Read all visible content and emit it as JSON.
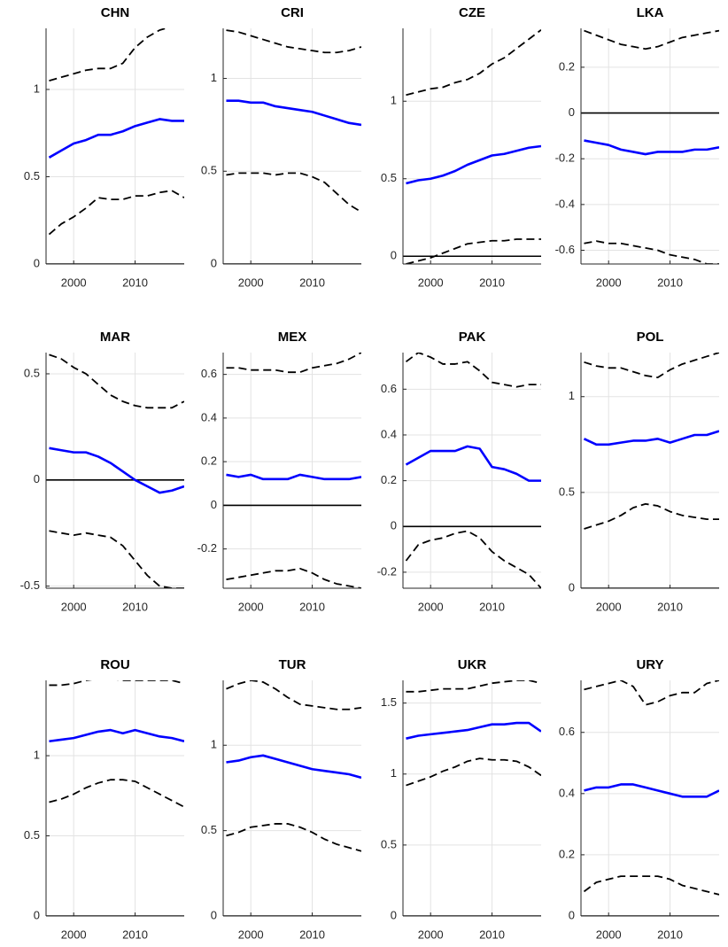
{
  "chart_data": [
    {
      "type": "line",
      "title": "CHN",
      "x": [
        1996,
        1998,
        2000,
        2002,
        2004,
        2006,
        2008,
        2010,
        2012,
        2014,
        2016,
        2018
      ],
      "xlim": [
        1995.5,
        2018
      ],
      "xticks": [
        2000,
        2010
      ],
      "ylim": [
        0,
        1.35
      ],
      "yticks": [
        0,
        0.5,
        1
      ],
      "grid": true,
      "hline": 0,
      "series": [
        {
          "color": "#0000ff",
          "style": "solid",
          "values": [
            0.61,
            0.65,
            0.69,
            0.71,
            0.74,
            0.74,
            0.76,
            0.79,
            0.81,
            0.83,
            0.82,
            0.82
          ]
        },
        {
          "color": "#000000",
          "style": "dashed",
          "values": [
            1.05,
            1.07,
            1.09,
            1.11,
            1.12,
            1.12,
            1.15,
            1.24,
            1.3,
            1.34,
            1.36,
            1.36
          ]
        },
        {
          "color": "#000000",
          "style": "dashed",
          "values": [
            0.17,
            0.23,
            0.27,
            0.32,
            0.38,
            0.37,
            0.37,
            0.39,
            0.39,
            0.41,
            0.42,
            0.38
          ]
        }
      ]
    },
    {
      "type": "line",
      "title": "CRI",
      "x": [
        1996,
        1998,
        2000,
        2002,
        2004,
        2006,
        2008,
        2010,
        2012,
        2014,
        2016,
        2018
      ],
      "xlim": [
        1995.5,
        2018
      ],
      "xticks": [
        2000,
        2010
      ],
      "ylim": [
        0,
        1.27
      ],
      "yticks": [
        0,
        0.5,
        1
      ],
      "grid": true,
      "hline": 0,
      "series": [
        {
          "color": "#0000ff",
          "style": "solid",
          "values": [
            0.88,
            0.88,
            0.87,
            0.87,
            0.85,
            0.84,
            0.83,
            0.82,
            0.8,
            0.78,
            0.76,
            0.75
          ]
        },
        {
          "color": "#000000",
          "style": "dashed",
          "values": [
            1.26,
            1.25,
            1.23,
            1.21,
            1.19,
            1.17,
            1.16,
            1.15,
            1.14,
            1.14,
            1.15,
            1.17
          ]
        },
        {
          "color": "#000000",
          "style": "dashed",
          "values": [
            0.48,
            0.49,
            0.49,
            0.49,
            0.48,
            0.49,
            0.49,
            0.47,
            0.44,
            0.38,
            0.32,
            0.28
          ]
        }
      ]
    },
    {
      "type": "line",
      "title": "CZE",
      "x": [
        1996,
        1998,
        2000,
        2002,
        2004,
        2006,
        2008,
        2010,
        2012,
        2014,
        2016,
        2018
      ],
      "xlim": [
        1995.5,
        2018
      ],
      "xticks": [
        2000,
        2010
      ],
      "ylim": [
        -0.05,
        1.47
      ],
      "yticks": [
        0,
        0.5,
        1
      ],
      "grid": true,
      "hline": 0,
      "series": [
        {
          "color": "#0000ff",
          "style": "solid",
          "values": [
            0.47,
            0.49,
            0.5,
            0.52,
            0.55,
            0.59,
            0.62,
            0.65,
            0.66,
            0.68,
            0.7,
            0.71
          ]
        },
        {
          "color": "#000000",
          "style": "dashed",
          "values": [
            1.04,
            1.06,
            1.08,
            1.09,
            1.12,
            1.14,
            1.18,
            1.24,
            1.28,
            1.34,
            1.4,
            1.46
          ]
        },
        {
          "color": "#000000",
          "style": "dashed",
          "values": [
            -0.05,
            -0.03,
            -0.01,
            0.02,
            0.05,
            0.08,
            0.09,
            0.1,
            0.1,
            0.11,
            0.11,
            0.11
          ]
        }
      ]
    },
    {
      "type": "line",
      "title": "LKA",
      "x": [
        1996,
        1998,
        2000,
        2002,
        2004,
        2006,
        2008,
        2010,
        2012,
        2014,
        2016,
        2018
      ],
      "xlim": [
        1995.5,
        2018
      ],
      "xticks": [
        2000,
        2010
      ],
      "ylim": [
        -0.66,
        0.37
      ],
      "yticks": [
        -0.6,
        -0.4,
        -0.2,
        0,
        0.2
      ],
      "grid": true,
      "hline": 0,
      "series": [
        {
          "color": "#0000ff",
          "style": "solid",
          "values": [
            -0.12,
            -0.13,
            -0.14,
            -0.16,
            -0.17,
            -0.18,
            -0.17,
            -0.17,
            -0.17,
            -0.16,
            -0.16,
            -0.15
          ]
        },
        {
          "color": "#000000",
          "style": "dashed",
          "values": [
            0.36,
            0.34,
            0.32,
            0.3,
            0.29,
            0.28,
            0.29,
            0.31,
            0.33,
            0.34,
            0.35,
            0.36
          ]
        },
        {
          "color": "#000000",
          "style": "dashed",
          "values": [
            -0.57,
            -0.56,
            -0.57,
            -0.57,
            -0.58,
            -0.59,
            -0.6,
            -0.62,
            -0.63,
            -0.64,
            -0.66,
            -0.66
          ]
        }
      ]
    },
    {
      "type": "line",
      "title": "MAR",
      "x": [
        1996,
        1998,
        2000,
        2002,
        2004,
        2006,
        2008,
        2010,
        2012,
        2014,
        2016,
        2018
      ],
      "xlim": [
        1995.5,
        2018
      ],
      "xticks": [
        2000,
        2010
      ],
      "ylim": [
        -0.51,
        0.6
      ],
      "yticks": [
        -0.5,
        0,
        0.5
      ],
      "grid": true,
      "hline": 0,
      "series": [
        {
          "color": "#0000ff",
          "style": "solid",
          "values": [
            0.15,
            0.14,
            0.13,
            0.13,
            0.11,
            0.08,
            0.04,
            0.0,
            -0.03,
            -0.06,
            -0.05,
            -0.03
          ]
        },
        {
          "color": "#000000",
          "style": "dashed",
          "values": [
            0.59,
            0.57,
            0.53,
            0.5,
            0.45,
            0.4,
            0.37,
            0.35,
            0.34,
            0.34,
            0.34,
            0.37
          ]
        },
        {
          "color": "#000000",
          "style": "dashed",
          "values": [
            -0.24,
            -0.25,
            -0.26,
            -0.25,
            -0.26,
            -0.27,
            -0.31,
            -0.38,
            -0.45,
            -0.5,
            -0.51,
            -0.51
          ]
        }
      ]
    },
    {
      "type": "line",
      "title": "MEX",
      "x": [
        1996,
        1998,
        2000,
        2002,
        2004,
        2006,
        2008,
        2010,
        2012,
        2014,
        2016,
        2018
      ],
      "xlim": [
        1995.5,
        2018
      ],
      "xticks": [
        2000,
        2010
      ],
      "ylim": [
        -0.38,
        0.7
      ],
      "yticks": [
        -0.2,
        0,
        0.2,
        0.4,
        0.6
      ],
      "grid": true,
      "hline": 0,
      "series": [
        {
          "color": "#0000ff",
          "style": "solid",
          "values": [
            0.14,
            0.13,
            0.14,
            0.12,
            0.12,
            0.12,
            0.14,
            0.13,
            0.12,
            0.12,
            0.12,
            0.13
          ]
        },
        {
          "color": "#000000",
          "style": "dashed",
          "values": [
            0.63,
            0.63,
            0.62,
            0.62,
            0.62,
            0.61,
            0.61,
            0.63,
            0.64,
            0.65,
            0.67,
            0.7
          ]
        },
        {
          "color": "#000000",
          "style": "dashed",
          "values": [
            -0.34,
            -0.33,
            -0.32,
            -0.31,
            -0.3,
            -0.3,
            -0.29,
            -0.31,
            -0.34,
            -0.36,
            -0.37,
            -0.38
          ]
        }
      ]
    },
    {
      "type": "line",
      "title": "PAK",
      "x": [
        1996,
        1998,
        2000,
        2002,
        2004,
        2006,
        2008,
        2010,
        2012,
        2014,
        2016,
        2018
      ],
      "xlim": [
        1995.5,
        2018
      ],
      "xticks": [
        2000,
        2010
      ],
      "ylim": [
        -0.27,
        0.76
      ],
      "yticks": [
        -0.2,
        0,
        0.2,
        0.4,
        0.6
      ],
      "grid": true,
      "hline": 0,
      "series": [
        {
          "color": "#0000ff",
          "style": "solid",
          "values": [
            0.27,
            0.3,
            0.33,
            0.33,
            0.33,
            0.35,
            0.34,
            0.26,
            0.25,
            0.23,
            0.2,
            0.2
          ]
        },
        {
          "color": "#000000",
          "style": "dashed",
          "values": [
            0.72,
            0.76,
            0.74,
            0.71,
            0.71,
            0.72,
            0.68,
            0.63,
            0.62,
            0.61,
            0.62,
            0.62
          ]
        },
        {
          "color": "#000000",
          "style": "dashed",
          "values": [
            -0.15,
            -0.08,
            -0.06,
            -0.05,
            -0.03,
            -0.02,
            -0.05,
            -0.11,
            -0.15,
            -0.18,
            -0.21,
            -0.27
          ]
        }
      ]
    },
    {
      "type": "line",
      "title": "POL",
      "x": [
        1996,
        1998,
        2000,
        2002,
        2004,
        2006,
        2008,
        2010,
        2012,
        2014,
        2016,
        2018
      ],
      "xlim": [
        1995.5,
        2018
      ],
      "xticks": [
        2000,
        2010
      ],
      "ylim": [
        0,
        1.23
      ],
      "yticks": [
        0,
        0.5,
        1
      ],
      "grid": true,
      "hline": 0,
      "series": [
        {
          "color": "#0000ff",
          "style": "solid",
          "values": [
            0.78,
            0.75,
            0.75,
            0.76,
            0.77,
            0.77,
            0.78,
            0.76,
            0.78,
            0.8,
            0.8,
            0.82
          ]
        },
        {
          "color": "#000000",
          "style": "dashed",
          "values": [
            1.18,
            1.16,
            1.15,
            1.15,
            1.13,
            1.11,
            1.1,
            1.14,
            1.17,
            1.19,
            1.21,
            1.23
          ]
        },
        {
          "color": "#000000",
          "style": "dashed",
          "values": [
            0.31,
            0.33,
            0.35,
            0.38,
            0.42,
            0.44,
            0.43,
            0.4,
            0.38,
            0.37,
            0.36,
            0.36
          ]
        }
      ]
    },
    {
      "type": "line",
      "title": "ROU",
      "x": [
        1996,
        1998,
        2000,
        2002,
        2004,
        2006,
        2008,
        2010,
        2012,
        2014,
        2016,
        2018
      ],
      "xlim": [
        1995.5,
        2018
      ],
      "xticks": [
        2000,
        2010
      ],
      "ylim": [
        0,
        1.47
      ],
      "yticks": [
        0,
        0.5,
        1
      ],
      "grid": true,
      "hline": 0,
      "series": [
        {
          "color": "#0000ff",
          "style": "solid",
          "values": [
            1.09,
            1.1,
            1.11,
            1.13,
            1.15,
            1.16,
            1.14,
            1.16,
            1.14,
            1.12,
            1.11,
            1.09
          ]
        },
        {
          "color": "#000000",
          "style": "dashed",
          "values": [
            1.44,
            1.44,
            1.45,
            1.47,
            1.48,
            1.48,
            1.47,
            1.47,
            1.47,
            1.47,
            1.47,
            1.45
          ]
        },
        {
          "color": "#000000",
          "style": "dashed",
          "values": [
            0.71,
            0.73,
            0.76,
            0.8,
            0.83,
            0.85,
            0.85,
            0.84,
            0.8,
            0.76,
            0.72,
            0.68
          ]
        }
      ]
    },
    {
      "type": "line",
      "title": "TUR",
      "x": [
        1996,
        1998,
        2000,
        2002,
        2004,
        2006,
        2008,
        2010,
        2012,
        2014,
        2016,
        2018
      ],
      "xlim": [
        1995.5,
        2018
      ],
      "xticks": [
        2000,
        2010
      ],
      "ylim": [
        0,
        1.38
      ],
      "yticks": [
        0,
        0.5,
        1
      ],
      "grid": true,
      "hline": 0,
      "series": [
        {
          "color": "#0000ff",
          "style": "solid",
          "values": [
            0.9,
            0.91,
            0.93,
            0.94,
            0.92,
            0.9,
            0.88,
            0.86,
            0.85,
            0.84,
            0.83,
            0.81
          ]
        },
        {
          "color": "#000000",
          "style": "dashed",
          "values": [
            1.33,
            1.36,
            1.38,
            1.37,
            1.33,
            1.28,
            1.24,
            1.23,
            1.22,
            1.21,
            1.21,
            1.22
          ]
        },
        {
          "color": "#000000",
          "style": "dashed",
          "values": [
            0.47,
            0.49,
            0.52,
            0.53,
            0.54,
            0.54,
            0.52,
            0.49,
            0.45,
            0.42,
            0.4,
            0.38
          ]
        }
      ]
    },
    {
      "type": "line",
      "title": "UKR",
      "x": [
        1996,
        1998,
        2000,
        2002,
        2004,
        2006,
        2008,
        2010,
        2012,
        2014,
        2016,
        2018
      ],
      "xlim": [
        1995.5,
        2018
      ],
      "xticks": [
        2000,
        2010
      ],
      "ylim": [
        0,
        1.66
      ],
      "yticks": [
        0,
        0.5,
        1,
        1.5
      ],
      "grid": true,
      "hline": 0,
      "series": [
        {
          "color": "#0000ff",
          "style": "solid",
          "values": [
            1.25,
            1.27,
            1.28,
            1.29,
            1.3,
            1.31,
            1.33,
            1.35,
            1.35,
            1.36,
            1.36,
            1.3
          ]
        },
        {
          "color": "#000000",
          "style": "dashed",
          "values": [
            1.58,
            1.58,
            1.59,
            1.6,
            1.6,
            1.6,
            1.62,
            1.64,
            1.65,
            1.66,
            1.66,
            1.64
          ]
        },
        {
          "color": "#000000",
          "style": "dashed",
          "values": [
            0.92,
            0.95,
            0.98,
            1.02,
            1.05,
            1.09,
            1.11,
            1.1,
            1.1,
            1.09,
            1.05,
            0.99
          ]
        }
      ]
    },
    {
      "type": "line",
      "title": "URY",
      "x": [
        1996,
        1998,
        2000,
        2002,
        2004,
        2006,
        2008,
        2010,
        2012,
        2014,
        2016,
        2018
      ],
      "xlim": [
        1995.5,
        2018
      ],
      "xticks": [
        2000,
        2010
      ],
      "ylim": [
        0,
        0.77
      ],
      "yticks": [
        0,
        0.2,
        0.4,
        0.6
      ],
      "grid": true,
      "hline": 0,
      "series": [
        {
          "color": "#0000ff",
          "style": "solid",
          "values": [
            0.41,
            0.42,
            0.42,
            0.43,
            0.43,
            0.42,
            0.41,
            0.4,
            0.39,
            0.39,
            0.39,
            0.41
          ]
        },
        {
          "color": "#000000",
          "style": "dashed",
          "values": [
            0.74,
            0.75,
            0.76,
            0.77,
            0.75,
            0.69,
            0.7,
            0.72,
            0.73,
            0.73,
            0.76,
            0.77
          ]
        },
        {
          "color": "#000000",
          "style": "dashed",
          "values": [
            0.08,
            0.11,
            0.12,
            0.13,
            0.13,
            0.13,
            0.13,
            0.12,
            0.1,
            0.09,
            0.08,
            0.07
          ]
        }
      ]
    }
  ]
}
